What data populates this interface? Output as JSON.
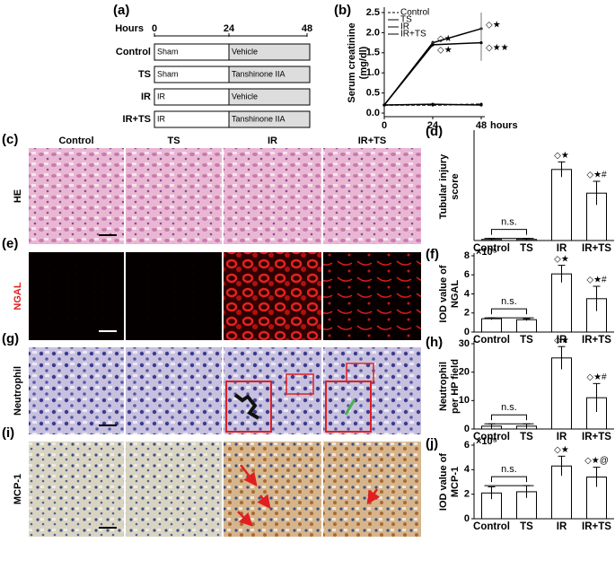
{
  "schematic": {
    "panel": "(a)",
    "axis_label": "Hours",
    "ticks": [
      "0",
      "24",
      "48"
    ],
    "rows": [
      {
        "group": "Control",
        "first": "Sham",
        "second": "Vehicle"
      },
      {
        "group": "TS",
        "first": "Sham",
        "second": "Tanshinone IIA"
      },
      {
        "group": "IR",
        "first": "IR",
        "second": "Vehicle"
      },
      {
        "group": "IR+TS",
        "first": "IR",
        "second": "Tanshinone IIA"
      }
    ]
  },
  "images": {
    "columns": [
      "Control",
      "TS",
      "IR",
      "IR+TS"
    ],
    "rows": [
      {
        "panel": "(c)",
        "label": "HE"
      },
      {
        "panel": "(e)",
        "label": "NGAL"
      },
      {
        "panel": "(g)",
        "label": "Neutrophil"
      },
      {
        "panel": "(i)",
        "label": "MCP-1"
      }
    ]
  },
  "chart_data": [
    {
      "type": "line",
      "panel": "(b)",
      "ylabel": [
        "Serum creatinine",
        "(mg/dl)"
      ],
      "xlabel": "hours",
      "x": [
        0,
        24,
        48
      ],
      "xlim": [
        0,
        48
      ],
      "xticks": [
        0,
        24,
        48
      ],
      "ylim": [
        0,
        2.5
      ],
      "yticks": [
        {
          "value": 0,
          "label": "0.0"
        },
        0.5,
        {
          "value": 1,
          "label": "1.0"
        },
        1.5,
        {
          "value": 2,
          "label": "2.0"
        },
        2.5
      ],
      "series": [
        {
          "name": "Control",
          "color": "#000000",
          "style": "dashed",
          "values": [
            0.2,
            0.2,
            0.22
          ],
          "errors": [
            0.02,
            0.02,
            0.02
          ]
        },
        {
          "name": "TS",
          "color": "#000000",
          "style": "solid",
          "values": [
            0.2,
            0.22,
            0.2
          ],
          "errors": [
            0.02,
            0.02,
            0.02
          ]
        },
        {
          "name": "IR",
          "color": "#000000",
          "style": "solid",
          "values": [
            0.2,
            1.75,
            2.1
          ],
          "errors": [
            0.02,
            0.06,
            0.4
          ]
        },
        {
          "name": "IR+TS",
          "color": "#000000",
          "style": "solid",
          "values": [
            0.2,
            1.7,
            1.75
          ],
          "errors": [
            0.02,
            0.06,
            0.45
          ]
        }
      ],
      "annotations": [
        {
          "series": "IR",
          "x": 24,
          "label": "◇★"
        },
        {
          "series": "IR+TS",
          "x": 24,
          "label": "◇★"
        },
        {
          "series": "IR",
          "x": 48,
          "label": "◇★"
        },
        {
          "series": "IR+TS",
          "x": 48,
          "label": "◇★★"
        }
      ]
    },
    {
      "type": "bar",
      "panel": "(d)",
      "ylabel": [
        "Tubular injury",
        "score"
      ],
      "categories": [
        "Control",
        "TS",
        "IR",
        "IR+TS"
      ],
      "values": [
        0.05,
        0.05,
        3.3,
        2.2
      ],
      "errors": [
        0.05,
        0.05,
        0.35,
        0.55
      ],
      "ylim": [
        0,
        5
      ],
      "color": "#ffffff",
      "ns_label": "n.s.",
      "significance": [
        {
          "category": "IR",
          "label": "◇★"
        },
        {
          "category": "IR+TS",
          "label": "◇★#"
        }
      ]
    },
    {
      "type": "bar",
      "panel": "(f)",
      "ylabel": [
        "IOD value of",
        "NGAL"
      ],
      "y_multiplier": "×10⁵",
      "categories": [
        "Control",
        "TS",
        "IR",
        "IR+TS"
      ],
      "values": [
        1.4,
        1.3,
        6.1,
        3.5
      ],
      "errors": [
        0.1,
        0.1,
        0.9,
        1.3
      ],
      "ylim": [
        0,
        8
      ],
      "yticks": [
        0,
        2,
        4,
        6,
        8
      ],
      "color": "#ffffff",
      "ns_label": "n.s.",
      "significance": [
        {
          "category": "IR",
          "label": "◇★"
        },
        {
          "category": "IR+TS",
          "label": "◇★#"
        }
      ]
    },
    {
      "type": "bar",
      "panel": "(h)",
      "ylabel": [
        "Neutrophil",
        "per HP field"
      ],
      "categories": [
        "Control",
        "TS",
        "IR",
        "IR+TS"
      ],
      "values": [
        1,
        1,
        25,
        11
      ],
      "errors": [
        0.8,
        0.8,
        4,
        5
      ],
      "ylim": [
        0,
        30
      ],
      "yticks": [
        0,
        10,
        20,
        30
      ],
      "color": "#ffffff",
      "ns_label": "n.s.",
      "significance": [
        {
          "category": "IR",
          "label": "◇★"
        },
        {
          "category": "IR+TS",
          "label": "◇★#"
        }
      ]
    },
    {
      "type": "bar",
      "panel": "(j)",
      "ylabel": [
        "IOD value of",
        "MCP-1"
      ],
      "y_multiplier": "×10⁵",
      "categories": [
        "Control",
        "TS",
        "IR",
        "IR+TS"
      ],
      "values": [
        2.1,
        2.2,
        4.3,
        3.4
      ],
      "errors": [
        0.5,
        0.5,
        0.8,
        0.8
      ],
      "ylim": [
        0,
        6
      ],
      "yticks": [
        0,
        2,
        4,
        6
      ],
      "color": "#ffffff",
      "ns_label": "n.s.",
      "significance": [
        {
          "category": "IR",
          "label": "◇★"
        },
        {
          "category": "IR+TS",
          "label": "◇★@"
        }
      ]
    }
  ]
}
